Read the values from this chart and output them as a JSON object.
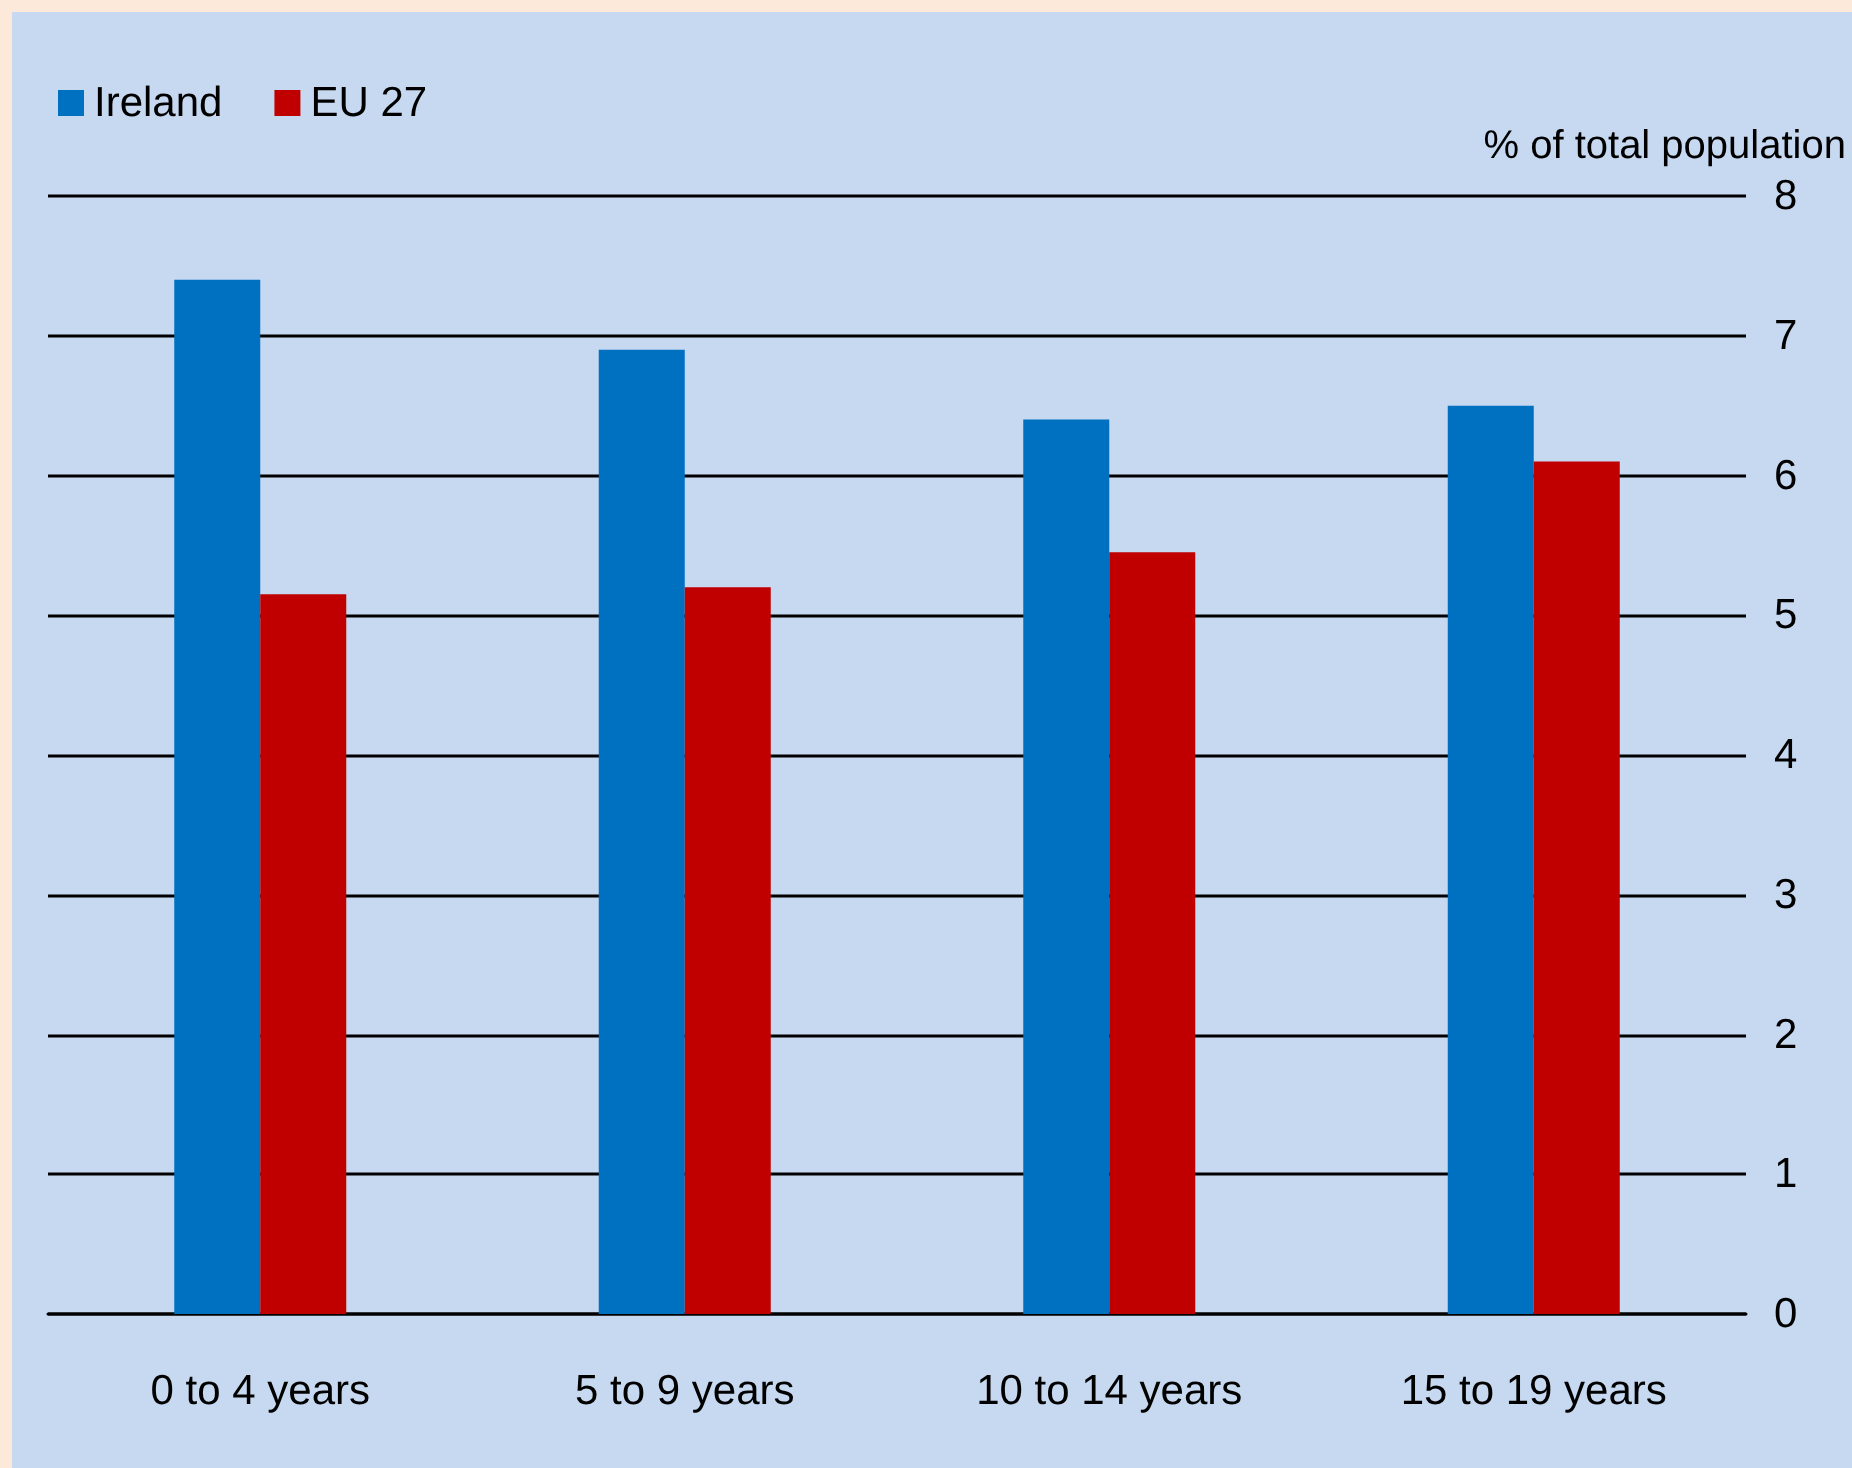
{
  "chart_data": {
    "type": "bar",
    "ylabel": "% of total population",
    "categories": [
      "0 to 4 years",
      "5 to 9 years",
      "10 to 14 years",
      "15 to 19 years"
    ],
    "series": [
      {
        "name": "Ireland",
        "color": "#0070c0",
        "values": [
          7.4,
          6.9,
          6.4,
          6.5
        ]
      },
      {
        "name": "EU 27",
        "color": "#c00000",
        "values": [
          5.15,
          5.2,
          5.45,
          6.1
        ]
      }
    ],
    "ylim": [
      0,
      8
    ],
    "yticks": [
      0,
      1,
      2,
      3,
      4,
      5,
      6,
      7,
      8
    ],
    "grid": "y",
    "legend": "top left"
  }
}
